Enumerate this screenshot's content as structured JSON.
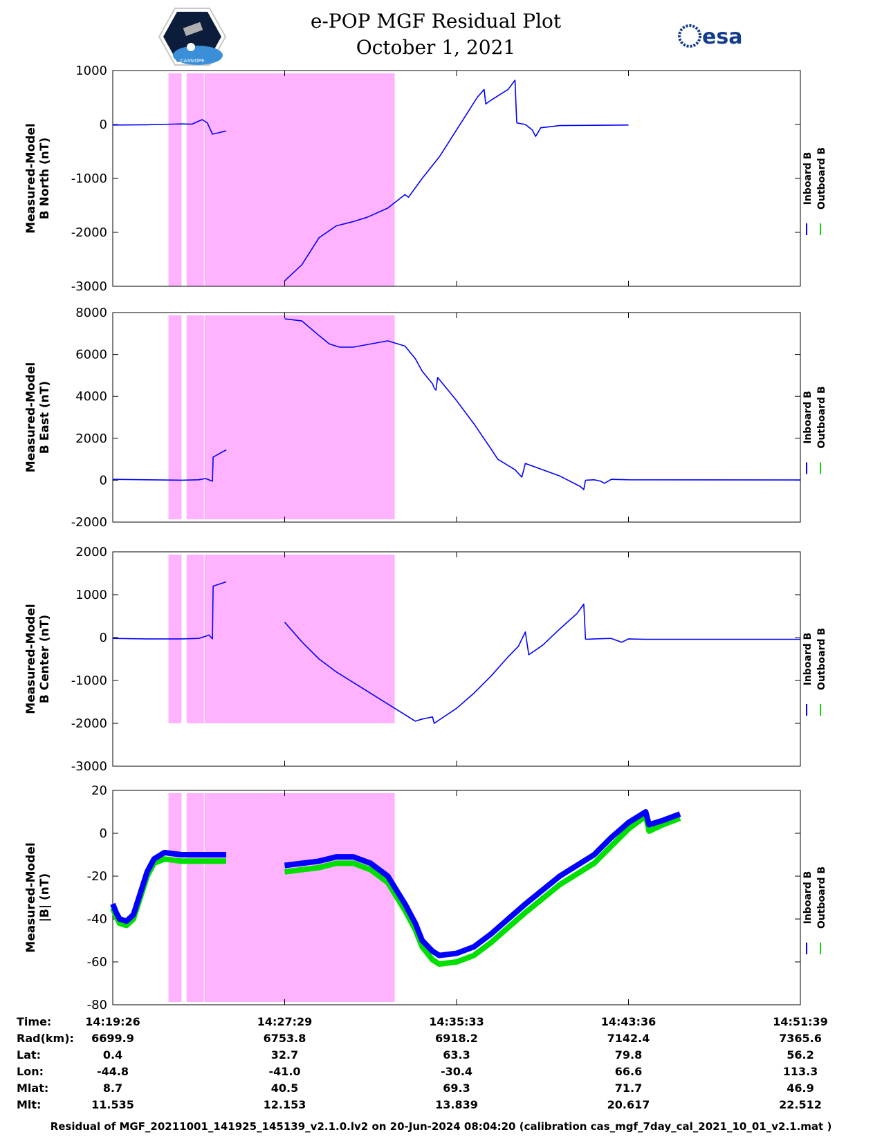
{
  "header": {
    "title_line1": "e-POP MGF Residual Plot",
    "title_line2": "October 1, 2021",
    "logo_left": "CASSIOPE",
    "logo_right": "esa"
  },
  "colors": {
    "inboard": "#0000ff",
    "outboard": "#00e000",
    "flag_shading": "#ffb3ff",
    "axis": "#000000"
  },
  "legend": {
    "inboard": "Inboard B",
    "outboard": "Outboard B"
  },
  "info_table": {
    "row_labels": [
      "Time:",
      "Rad(km):",
      "Lat:",
      "Lon:",
      "Mlat:",
      "Mlt:"
    ],
    "columns": [
      [
        "14:19:26",
        "6699.9",
        "0.4",
        "-44.8",
        "8.7",
        "11.535"
      ],
      [
        "14:27:29",
        "6753.8",
        "32.7",
        "-41.0",
        "40.5",
        "12.153"
      ],
      [
        "14:35:33",
        "6918.2",
        "63.3",
        "-30.4",
        "69.3",
        "13.839"
      ],
      [
        "14:43:36",
        "7142.4",
        "79.8",
        "66.6",
        "71.7",
        "20.617"
      ],
      [
        "14:51:39",
        "7365.6",
        "56.2",
        "113.3",
        "46.9",
        "22.512"
      ]
    ]
  },
  "footer": "Residual of MGF_20211001_141925_145139_v2.1.0.lv2 on 20-Jun-2024 08:04:20 (calibration cas_mgf_7day_cal_2021_10_01_v2.1.mat )",
  "chart_data": [
    {
      "type": "line",
      "ylabel": [
        "Measured-Model",
        "B North (nT)"
      ],
      "ylim": [
        -3000,
        1000
      ],
      "yticks": [
        1000,
        0,
        -1000,
        -2000,
        -3000
      ],
      "xticks": [
        "14:19:26",
        "14:27:29",
        "14:35:33",
        "14:43:36",
        "14:51:39"
      ],
      "shaded_x": [
        [
          0.162,
          0.2
        ],
        [
          0.215,
          0.265
        ],
        [
          0.267,
          0.82
        ]
      ],
      "series": [
        {
          "name": "Inboard B",
          "segments": [
            [
              [
                0,
                -10
              ],
              [
                0.1,
                -5
              ],
              [
                0.2,
                10
              ],
              [
                0.23,
                5
              ],
              [
                0.26,
                90
              ],
              [
                0.275,
                30
              ],
              [
                0.29,
                -180
              ],
              [
                0.33,
                -120
              ]
            ],
            [
              [
                0.5,
                -2900
              ],
              [
                0.55,
                -2600
              ],
              [
                0.6,
                -2100
              ],
              [
                0.65,
                -1880
              ],
              [
                0.7,
                -1800
              ],
              [
                0.74,
                -1720
              ],
              [
                0.8,
                -1550
              ],
              [
                0.85,
                -1300
              ],
              [
                0.86,
                -1350
              ],
              [
                0.9,
                -1000
              ],
              [
                0.95,
                -600
              ],
              [
                0.98,
                -300
              ],
              [
                1.0,
                -100
              ],
              [
                1.03,
                200
              ],
              [
                1.06,
                500
              ],
              [
                1.08,
                650
              ],
              [
                1.085,
                380
              ],
              [
                1.1,
                450
              ],
              [
                1.15,
                650
              ],
              [
                1.17,
                820
              ],
              [
                1.175,
                30
              ]
            ],
            [
              [
                1.175,
                30
              ],
              [
                1.2,
                0
              ],
              [
                1.22,
                -100
              ],
              [
                1.23,
                -220
              ],
              [
                1.245,
                -60
              ],
              [
                1.26,
                -50
              ],
              [
                1.3,
                -20
              ],
              [
                1.5,
                -10
              ]
            ]
          ]
        }
      ]
    },
    {
      "type": "line",
      "ylabel": [
        "Measured-Model",
        "B East (nT)"
      ],
      "ylim": [
        -2000,
        8000
      ],
      "yticks": [
        8000,
        6000,
        4000,
        2000,
        0,
        -2000
      ],
      "xticks": [
        "14:19:26",
        "14:27:29",
        "14:35:33",
        "14:43:36",
        "14:51:39"
      ],
      "shaded_x": [
        [
          0.162,
          0.2
        ],
        [
          0.215,
          0.265
        ],
        [
          0.267,
          0.82
        ]
      ],
      "series": [
        {
          "name": "Inboard B",
          "segments": [
            [
              [
                0,
                40
              ],
              [
                0.1,
                20
              ],
              [
                0.2,
                0
              ],
              [
                0.25,
                20
              ],
              [
                0.27,
                80
              ],
              [
                0.29,
                -50
              ],
              [
                0.292,
                1100
              ],
              [
                0.33,
                1450
              ]
            ],
            [
              [
                0.5,
                7700
              ],
              [
                0.55,
                7600
              ],
              [
                0.6,
                6900
              ],
              [
                0.63,
                6500
              ],
              [
                0.66,
                6350
              ],
              [
                0.7,
                6350
              ],
              [
                0.75,
                6500
              ],
              [
                0.8,
                6650
              ],
              [
                0.85,
                6400
              ],
              [
                0.88,
                5800
              ],
              [
                0.9,
                5200
              ],
              [
                0.93,
                4600
              ],
              [
                0.935,
                4400
              ],
              [
                0.94,
                4300
              ],
              [
                0.945,
                4900
              ],
              [
                1.0,
                3800
              ],
              [
                1.05,
                2700
              ],
              [
                1.1,
                1500
              ],
              [
                1.12,
                1000
              ],
              [
                1.17,
                500
              ],
              [
                1.19,
                150
              ],
              [
                1.2,
                800
              ],
              [
                1.25,
                500
              ],
              [
                1.3,
                200
              ],
              [
                1.36,
                -300
              ],
              [
                1.37,
                -450
              ],
              [
                1.375,
                0
              ]
            ],
            [
              [
                1.375,
                0
              ],
              [
                1.4,
                20
              ],
              [
                1.42,
                -50
              ],
              [
                1.43,
                -150
              ],
              [
                1.45,
                40
              ],
              [
                1.5,
                20
              ],
              [
                2.0,
                10
              ]
            ]
          ]
        }
      ]
    },
    {
      "type": "line",
      "ylabel": [
        "Measured-Model",
        "B Center (nT)"
      ],
      "ylim": [
        -3000,
        2000
      ],
      "yticks": [
        2000,
        1000,
        0,
        -1000,
        -2000,
        -3000
      ],
      "xticks": [
        "14:19:26",
        "14:27:29",
        "14:35:33",
        "14:43:36",
        "14:51:39"
      ],
      "shaded_x": [
        [
          0.162,
          0.2
        ],
        [
          0.215,
          0.265
        ],
        [
          0.267,
          0.82
        ]
      ],
      "series": [
        {
          "name": "Inboard B",
          "segments": [
            [
              [
                0,
                -20
              ],
              [
                0.1,
                -30
              ],
              [
                0.2,
                -30
              ],
              [
                0.25,
                -20
              ],
              [
                0.27,
                30
              ],
              [
                0.28,
                60
              ],
              [
                0.29,
                -30
              ],
              [
                0.292,
                1200
              ],
              [
                0.33,
                1300
              ]
            ],
            [
              [
                0.5,
                360
              ],
              [
                0.55,
                -100
              ],
              [
                0.6,
                -500
              ],
              [
                0.65,
                -800
              ],
              [
                0.7,
                -1050
              ],
              [
                0.75,
                -1300
              ],
              [
                0.8,
                -1550
              ],
              [
                0.85,
                -1800
              ],
              [
                0.87,
                -1900
              ],
              [
                0.88,
                -1950
              ],
              [
                0.9,
                -1900
              ],
              [
                0.92,
                -1870
              ],
              [
                0.93,
                -1850
              ],
              [
                0.935,
                -2000
              ],
              [
                1.0,
                -1650
              ],
              [
                1.05,
                -1300
              ],
              [
                1.1,
                -900
              ],
              [
                1.15,
                -450
              ],
              [
                1.18,
                -200
              ],
              [
                1.2,
                130
              ],
              [
                1.21,
                -400
              ],
              [
                1.25,
                -180
              ],
              [
                1.3,
                200
              ],
              [
                1.35,
                560
              ],
              [
                1.37,
                780
              ],
              [
                1.375,
                -40
              ]
            ],
            [
              [
                1.375,
                -40
              ],
              [
                1.4,
                -30
              ],
              [
                1.45,
                -20
              ],
              [
                1.48,
                -110
              ],
              [
                1.5,
                -30
              ],
              [
                1.55,
                -40
              ],
              [
                2.0,
                -40
              ]
            ]
          ]
        }
      ]
    },
    {
      "type": "line",
      "ylabel": [
        "Measured-Model",
        "|B| (nT)"
      ],
      "ylim": [
        -80,
        20
      ],
      "yticks": [
        20,
        0,
        -20,
        -40,
        -60,
        -80
      ],
      "xticks": [
        "14:19:26",
        "14:27:29",
        "14:35:33",
        "14:43:36",
        "14:51:39"
      ],
      "shaded_x": [
        [
          0.162,
          0.2
        ],
        [
          0.215,
          0.265
        ],
        [
          0.267,
          0.82
        ]
      ],
      "series": [
        {
          "name": "Inboard B",
          "segments": [
            [
              [
                0,
                -33
              ],
              [
                0.01,
                -37
              ],
              [
                0.02,
                -40
              ],
              [
                0.04,
                -41
              ],
              [
                0.06,
                -38
              ],
              [
                0.08,
                -28
              ],
              [
                0.1,
                -18
              ],
              [
                0.12,
                -12
              ],
              [
                0.15,
                -9
              ],
              [
                0.2,
                -10
              ],
              [
                0.25,
                -10
              ],
              [
                0.3,
                -10
              ],
              [
                0.33,
                -10
              ]
            ],
            [
              [
                0.5,
                -15
              ],
              [
                0.55,
                -14
              ],
              [
                0.6,
                -13
              ],
              [
                0.65,
                -11
              ],
              [
                0.7,
                -11
              ],
              [
                0.75,
                -14
              ],
              [
                0.8,
                -20
              ],
              [
                0.85,
                -33
              ],
              [
                0.88,
                -42
              ],
              [
                0.9,
                -50
              ],
              [
                0.93,
                -55
              ],
              [
                0.95,
                -57
              ],
              [
                1.0,
                -56
              ],
              [
                1.05,
                -53
              ],
              [
                1.1,
                -47
              ],
              [
                1.15,
                -40
              ],
              [
                1.2,
                -33
              ],
              [
                1.3,
                -20
              ],
              [
                1.4,
                -10
              ],
              [
                1.45,
                -2
              ],
              [
                1.5,
                5
              ],
              [
                1.55,
                10
              ],
              [
                1.56,
                4
              ],
              [
                1.6,
                6
              ],
              [
                1.65,
                9
              ]
            ]
          ]
        },
        {
          "name": "Outboard B",
          "segments": [
            [
              [
                0,
                -35
              ],
              [
                0.01,
                -39
              ],
              [
                0.02,
                -42
              ],
              [
                0.04,
                -43
              ],
              [
                0.06,
                -40
              ],
              [
                0.08,
                -30
              ],
              [
                0.1,
                -20
              ],
              [
                0.12,
                -14
              ],
              [
                0.15,
                -12
              ],
              [
                0.2,
                -13
              ],
              [
                0.25,
                -13
              ],
              [
                0.3,
                -13
              ],
              [
                0.33,
                -13
              ]
            ],
            [
              [
                0.5,
                -18
              ],
              [
                0.55,
                -17
              ],
              [
                0.6,
                -16
              ],
              [
                0.65,
                -14
              ],
              [
                0.7,
                -14
              ],
              [
                0.75,
                -17
              ],
              [
                0.8,
                -23
              ],
              [
                0.85,
                -36
              ],
              [
                0.88,
                -45
              ],
              [
                0.9,
                -53
              ],
              [
                0.93,
                -59
              ],
              [
                0.95,
                -61
              ],
              [
                1.0,
                -60
              ],
              [
                1.05,
                -57
              ],
              [
                1.1,
                -51
              ],
              [
                1.15,
                -44
              ],
              [
                1.2,
                -37
              ],
              [
                1.3,
                -24
              ],
              [
                1.4,
                -14
              ],
              [
                1.45,
                -6
              ],
              [
                1.5,
                2
              ],
              [
                1.55,
                8
              ],
              [
                1.56,
                1
              ],
              [
                1.6,
                4
              ],
              [
                1.65,
                7
              ]
            ]
          ]
        }
      ]
    }
  ]
}
